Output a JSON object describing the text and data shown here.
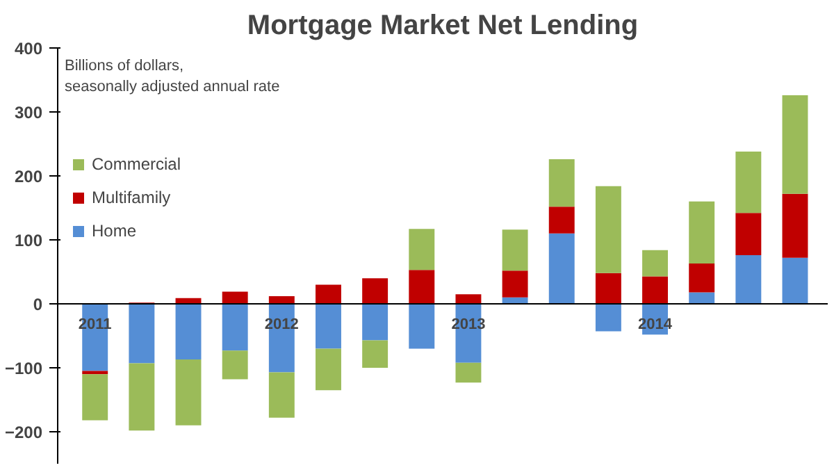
{
  "chart_data": {
    "type": "bar",
    "title": "Mortgage Market Net Lending",
    "subtitle": "Billions of dollars, seasonally adjusted annual rate",
    "categories": [
      "2011",
      null,
      null,
      null,
      "2012",
      null,
      null,
      null,
      "2013",
      null,
      null,
      null,
      "2014",
      null,
      null,
      null
    ],
    "stacked": true,
    "series": [
      {
        "name": "Home",
        "color": "#558ed5",
        "values": [
          -105,
          -93,
          -87,
          -73,
          -107,
          -70,
          -57,
          -70,
          -92,
          10,
          110,
          -43,
          -48,
          18,
          76,
          72
        ]
      },
      {
        "name": "Multifamily",
        "color": "#c00000",
        "values": [
          -5,
          2,
          9,
          19,
          12,
          30,
          40,
          53,
          15,
          42,
          42,
          48,
          43,
          45,
          66,
          100
        ]
      },
      {
        "name": "Commercial",
        "color": "#9bbb59",
        "values": [
          -72,
          -105,
          -103,
          -45,
          -71,
          -65,
          -43,
          64,
          -31,
          64,
          74,
          136,
          41,
          97,
          96,
          154
        ]
      }
    ],
    "ylim": [
      -250,
      400
    ],
    "yticks": [
      -200,
      -100,
      0,
      100,
      200,
      300,
      400
    ],
    "grid": false,
    "legend": "top left"
  }
}
